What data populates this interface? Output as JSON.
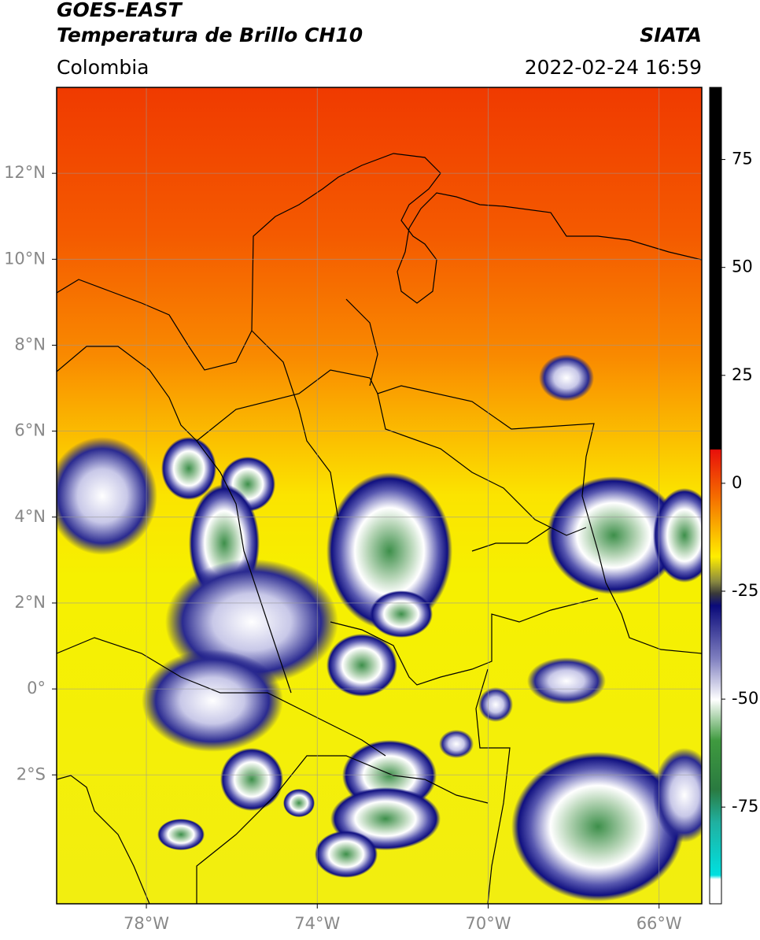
{
  "header": {
    "title": "GOES-EAST",
    "subtitle": "Temperatura de Brillo CH10",
    "source": "SIATA",
    "region": "Colombia",
    "datetime": "2022-02-24 16:59"
  },
  "map": {
    "xlim": [
      -80.1,
      -65
    ],
    "ylim": [
      -5,
      14
    ],
    "xticks": [
      {
        "value": -78,
        "label": "78°W"
      },
      {
        "value": -74,
        "label": "74°W"
      },
      {
        "value": -70,
        "label": "70°W"
      },
      {
        "value": -66,
        "label": "66°W"
      }
    ],
    "yticks": [
      {
        "value": 12,
        "label": "12°N"
      },
      {
        "value": 10,
        "label": "10°N"
      },
      {
        "value": 8,
        "label": "8°N"
      },
      {
        "value": 6,
        "label": "6°N"
      },
      {
        "value": 4,
        "label": "4°N"
      },
      {
        "value": 2,
        "label": "2°N"
      },
      {
        "value": 0,
        "label": "0°"
      },
      {
        "value": -2,
        "label": "2°S"
      }
    ],
    "grid": true
  },
  "colorbar": {
    "lim": [
      -97.4,
      91.7
    ],
    "ticks": [
      75,
      50,
      25,
      0,
      -25,
      -50,
      -75
    ]
  }
}
